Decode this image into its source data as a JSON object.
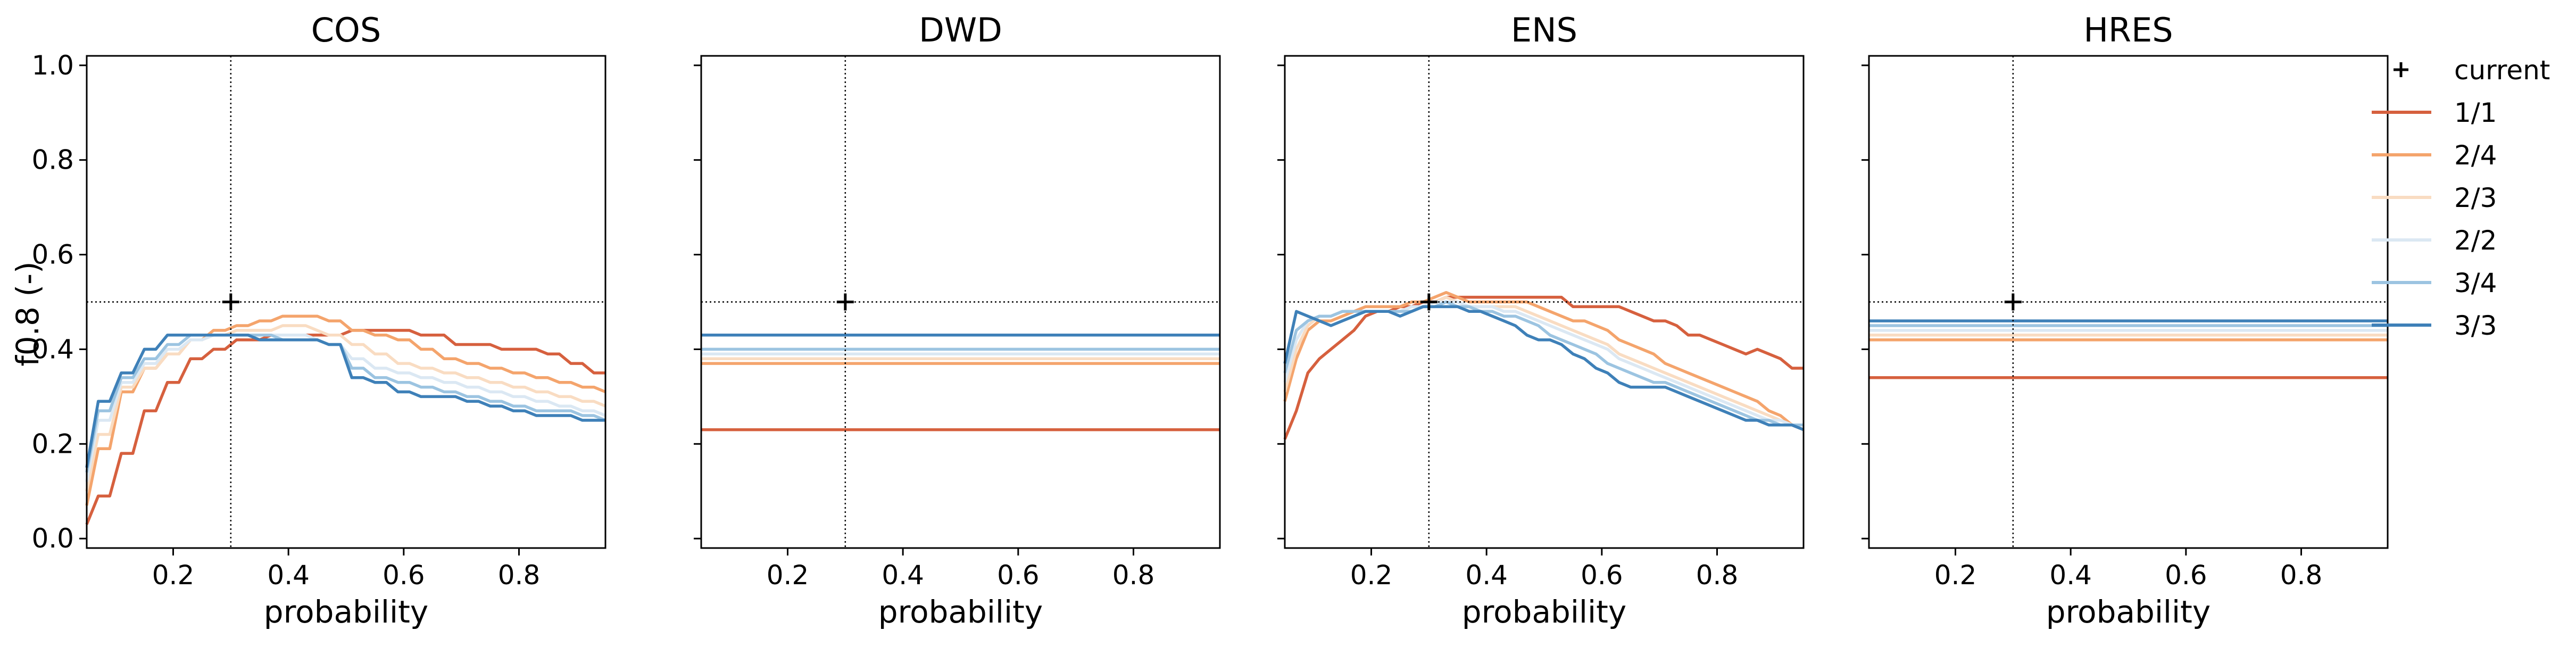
{
  "figure": {
    "ylabel": "f0.8 (-)",
    "xlabel": "probability",
    "legend_position": "right, outside plot area"
  },
  "legend": {
    "items": [
      {
        "label": "current",
        "marker": "plus",
        "color": "#000000"
      },
      {
        "label": "1/1",
        "color": "#d6603e"
      },
      {
        "label": "2/4",
        "color": "#f4a46c"
      },
      {
        "label": "2/3",
        "color": "#f9dcc2"
      },
      {
        "label": "2/2",
        "color": "#dbe8f3"
      },
      {
        "label": "3/4",
        "color": "#9cc4e1"
      },
      {
        "label": "3/3",
        "color": "#3e80b8"
      }
    ]
  },
  "chart_data": [
    {
      "type": "line",
      "title": "COS",
      "xlabel": "probability",
      "ylabel": "f0.8 (-)",
      "xlim": [
        0.05,
        0.95
      ],
      "ylim": [
        -0.02,
        1.02
      ],
      "xticks": [
        "0.2",
        "0.4",
        "0.6",
        "0.8"
      ],
      "yticks": [
        "0.0",
        "0.2",
        "0.4",
        "0.6",
        "0.8",
        "1.0"
      ],
      "current": {
        "x": 0.3,
        "y": 0.5
      },
      "x": [
        0.05,
        0.07,
        0.09,
        0.11,
        0.13,
        0.15,
        0.17,
        0.19,
        0.21,
        0.23,
        0.25,
        0.27,
        0.29,
        0.31,
        0.33,
        0.35,
        0.37,
        0.39,
        0.41,
        0.43,
        0.45,
        0.47,
        0.49,
        0.51,
        0.53,
        0.55,
        0.57,
        0.59,
        0.61,
        0.63,
        0.65,
        0.67,
        0.69,
        0.71,
        0.73,
        0.75,
        0.77,
        0.79,
        0.81,
        0.83,
        0.85,
        0.87,
        0.89,
        0.91,
        0.93,
        0.95
      ],
      "series": [
        {
          "name": "1/1",
          "color": "#d6603e",
          "values": [
            0.03,
            0.09,
            0.09,
            0.18,
            0.18,
            0.27,
            0.27,
            0.33,
            0.33,
            0.38,
            0.38,
            0.4,
            0.4,
            0.42,
            0.42,
            0.42,
            0.43,
            0.43,
            0.43,
            0.43,
            0.43,
            0.43,
            0.43,
            0.44,
            0.44,
            0.44,
            0.44,
            0.44,
            0.44,
            0.43,
            0.43,
            0.43,
            0.41,
            0.41,
            0.41,
            0.41,
            0.4,
            0.4,
            0.4,
            0.4,
            0.39,
            0.39,
            0.37,
            0.37,
            0.35,
            0.35
          ]
        },
        {
          "name": "2/4",
          "color": "#f4a46c",
          "values": [
            0.07,
            0.19,
            0.19,
            0.31,
            0.31,
            0.36,
            0.36,
            0.39,
            0.39,
            0.42,
            0.42,
            0.44,
            0.44,
            0.45,
            0.45,
            0.46,
            0.46,
            0.47,
            0.47,
            0.47,
            0.47,
            0.46,
            0.46,
            0.44,
            0.44,
            0.43,
            0.43,
            0.42,
            0.42,
            0.4,
            0.4,
            0.38,
            0.38,
            0.37,
            0.37,
            0.36,
            0.36,
            0.35,
            0.35,
            0.34,
            0.34,
            0.33,
            0.33,
            0.32,
            0.32,
            0.31
          ]
        },
        {
          "name": "2/3",
          "color": "#f9dcc2",
          "values": [
            0.1,
            0.22,
            0.22,
            0.32,
            0.32,
            0.36,
            0.36,
            0.39,
            0.39,
            0.42,
            0.42,
            0.43,
            0.43,
            0.44,
            0.44,
            0.44,
            0.44,
            0.45,
            0.45,
            0.45,
            0.44,
            0.43,
            0.43,
            0.41,
            0.41,
            0.39,
            0.39,
            0.37,
            0.37,
            0.36,
            0.36,
            0.35,
            0.35,
            0.34,
            0.34,
            0.33,
            0.33,
            0.32,
            0.32,
            0.31,
            0.31,
            0.3,
            0.3,
            0.29,
            0.29,
            0.28
          ]
        },
        {
          "name": "2/2",
          "color": "#dbe8f3",
          "values": [
            0.12,
            0.25,
            0.25,
            0.33,
            0.33,
            0.37,
            0.37,
            0.4,
            0.4,
            0.42,
            0.42,
            0.43,
            0.43,
            0.43,
            0.43,
            0.43,
            0.43,
            0.43,
            0.43,
            0.43,
            0.42,
            0.41,
            0.41,
            0.38,
            0.38,
            0.36,
            0.36,
            0.35,
            0.35,
            0.34,
            0.34,
            0.33,
            0.33,
            0.32,
            0.32,
            0.31,
            0.31,
            0.3,
            0.3,
            0.29,
            0.29,
            0.28,
            0.28,
            0.27,
            0.27,
            0.26
          ]
        },
        {
          "name": "3/4",
          "color": "#9cc4e1",
          "values": [
            0.14,
            0.27,
            0.27,
            0.34,
            0.34,
            0.38,
            0.38,
            0.41,
            0.41,
            0.43,
            0.43,
            0.43,
            0.43,
            0.43,
            0.43,
            0.43,
            0.43,
            0.42,
            0.42,
            0.42,
            0.42,
            0.41,
            0.41,
            0.36,
            0.36,
            0.34,
            0.34,
            0.33,
            0.33,
            0.32,
            0.32,
            0.31,
            0.31,
            0.3,
            0.3,
            0.29,
            0.29,
            0.28,
            0.28,
            0.27,
            0.27,
            0.27,
            0.27,
            0.26,
            0.26,
            0.25
          ]
        },
        {
          "name": "3/3",
          "color": "#3e80b8",
          "values": [
            0.15,
            0.29,
            0.29,
            0.35,
            0.35,
            0.4,
            0.4,
            0.43,
            0.43,
            0.43,
            0.43,
            0.43,
            0.43,
            0.43,
            0.43,
            0.42,
            0.42,
            0.42,
            0.42,
            0.42,
            0.42,
            0.41,
            0.41,
            0.34,
            0.34,
            0.33,
            0.33,
            0.31,
            0.31,
            0.3,
            0.3,
            0.3,
            0.3,
            0.29,
            0.29,
            0.28,
            0.28,
            0.27,
            0.27,
            0.26,
            0.26,
            0.26,
            0.26,
            0.25,
            0.25,
            0.25
          ]
        }
      ]
    },
    {
      "type": "line",
      "title": "DWD",
      "xlabel": "probability",
      "xlim": [
        0.05,
        0.95
      ],
      "ylim": [
        -0.02,
        1.02
      ],
      "xticks": [
        "0.2",
        "0.4",
        "0.6",
        "0.8"
      ],
      "current": {
        "x": 0.3,
        "y": 0.5
      },
      "x": [
        0.05,
        0.95
      ],
      "series": [
        {
          "name": "1/1",
          "color": "#d6603e",
          "values": [
            0.23,
            0.23
          ]
        },
        {
          "name": "2/4",
          "color": "#f4a46c",
          "values": [
            0.37,
            0.37
          ]
        },
        {
          "name": "2/3",
          "color": "#f9dcc2",
          "values": [
            0.38,
            0.38
          ]
        },
        {
          "name": "2/2",
          "color": "#dbe8f3",
          "values": [
            0.39,
            0.39
          ]
        },
        {
          "name": "3/4",
          "color": "#9cc4e1",
          "values": [
            0.4,
            0.4
          ]
        },
        {
          "name": "3/3",
          "color": "#3e80b8",
          "values": [
            0.43,
            0.43
          ]
        }
      ]
    },
    {
      "type": "line",
      "title": "ENS",
      "xlabel": "probability",
      "xlim": [
        0.05,
        0.95
      ],
      "ylim": [
        -0.02,
        1.02
      ],
      "xticks": [
        "0.2",
        "0.4",
        "0.6",
        "0.8"
      ],
      "current": {
        "x": 0.3,
        "y": 0.5
      },
      "x": [
        0.05,
        0.07,
        0.09,
        0.11,
        0.13,
        0.15,
        0.17,
        0.19,
        0.21,
        0.23,
        0.25,
        0.27,
        0.29,
        0.31,
        0.33,
        0.35,
        0.37,
        0.39,
        0.41,
        0.43,
        0.45,
        0.47,
        0.49,
        0.51,
        0.53,
        0.55,
        0.57,
        0.59,
        0.61,
        0.63,
        0.65,
        0.67,
        0.69,
        0.71,
        0.73,
        0.75,
        0.77,
        0.79,
        0.81,
        0.83,
        0.85,
        0.87,
        0.89,
        0.91,
        0.93,
        0.95
      ],
      "series": [
        {
          "name": "1/1",
          "color": "#d6603e",
          "values": [
            0.21,
            0.27,
            0.35,
            0.38,
            0.4,
            0.42,
            0.44,
            0.47,
            0.48,
            0.48,
            0.49,
            0.49,
            0.5,
            0.5,
            0.51,
            0.51,
            0.51,
            0.51,
            0.51,
            0.51,
            0.51,
            0.51,
            0.51,
            0.51,
            0.51,
            0.49,
            0.49,
            0.49,
            0.49,
            0.49,
            0.48,
            0.47,
            0.46,
            0.46,
            0.45,
            0.43,
            0.43,
            0.42,
            0.41,
            0.4,
            0.39,
            0.4,
            0.39,
            0.38,
            0.36,
            0.36
          ]
        },
        {
          "name": "2/4",
          "color": "#f4a46c",
          "values": [
            0.29,
            0.38,
            0.44,
            0.46,
            0.46,
            0.47,
            0.48,
            0.49,
            0.49,
            0.49,
            0.49,
            0.5,
            0.5,
            0.51,
            0.52,
            0.51,
            0.5,
            0.5,
            0.5,
            0.5,
            0.5,
            0.5,
            0.49,
            0.48,
            0.47,
            0.46,
            0.46,
            0.45,
            0.44,
            0.42,
            0.41,
            0.4,
            0.39,
            0.37,
            0.36,
            0.35,
            0.34,
            0.33,
            0.32,
            0.31,
            0.3,
            0.29,
            0.27,
            0.26,
            0.24,
            0.23
          ]
        },
        {
          "name": "2/3",
          "color": "#f9dcc2",
          "values": [
            0.31,
            0.4,
            0.45,
            0.47,
            0.47,
            0.48,
            0.48,
            0.48,
            0.48,
            0.48,
            0.48,
            0.49,
            0.49,
            0.5,
            0.51,
            0.5,
            0.49,
            0.49,
            0.49,
            0.49,
            0.49,
            0.48,
            0.47,
            0.46,
            0.45,
            0.44,
            0.43,
            0.42,
            0.41,
            0.39,
            0.38,
            0.37,
            0.36,
            0.35,
            0.34,
            0.33,
            0.32,
            0.31,
            0.3,
            0.29,
            0.28,
            0.27,
            0.26,
            0.25,
            0.24,
            0.24
          ]
        },
        {
          "name": "2/2",
          "color": "#dbe8f3",
          "values": [
            0.33,
            0.42,
            0.46,
            0.47,
            0.47,
            0.48,
            0.48,
            0.48,
            0.48,
            0.48,
            0.48,
            0.49,
            0.49,
            0.5,
            0.5,
            0.5,
            0.49,
            0.49,
            0.49,
            0.48,
            0.48,
            0.47,
            0.46,
            0.45,
            0.44,
            0.43,
            0.42,
            0.41,
            0.4,
            0.38,
            0.37,
            0.36,
            0.35,
            0.34,
            0.33,
            0.32,
            0.31,
            0.3,
            0.29,
            0.28,
            0.27,
            0.26,
            0.25,
            0.25,
            0.24,
            0.24
          ]
        },
        {
          "name": "3/4",
          "color": "#9cc4e1",
          "values": [
            0.35,
            0.44,
            0.46,
            0.47,
            0.47,
            0.48,
            0.48,
            0.48,
            0.48,
            0.48,
            0.48,
            0.48,
            0.49,
            0.49,
            0.5,
            0.49,
            0.49,
            0.48,
            0.48,
            0.47,
            0.47,
            0.46,
            0.45,
            0.43,
            0.42,
            0.41,
            0.4,
            0.39,
            0.37,
            0.36,
            0.35,
            0.34,
            0.33,
            0.33,
            0.32,
            0.31,
            0.3,
            0.29,
            0.28,
            0.27,
            0.26,
            0.25,
            0.25,
            0.24,
            0.24,
            0.24
          ]
        },
        {
          "name": "3/3",
          "color": "#3e80b8",
          "values": [
            0.37,
            0.48,
            0.47,
            0.46,
            0.45,
            0.46,
            0.47,
            0.48,
            0.48,
            0.48,
            0.47,
            0.48,
            0.49,
            0.49,
            0.49,
            0.49,
            0.48,
            0.48,
            0.47,
            0.46,
            0.45,
            0.43,
            0.42,
            0.42,
            0.41,
            0.39,
            0.38,
            0.36,
            0.35,
            0.33,
            0.32,
            0.32,
            0.32,
            0.32,
            0.31,
            0.3,
            0.29,
            0.28,
            0.27,
            0.26,
            0.25,
            0.25,
            0.24,
            0.24,
            0.24,
            0.23
          ]
        }
      ]
    },
    {
      "type": "line",
      "title": "HRES",
      "xlabel": "probability",
      "xlim": [
        0.05,
        0.95
      ],
      "ylim": [
        -0.02,
        1.02
      ],
      "xticks": [
        "0.2",
        "0.4",
        "0.6",
        "0.8"
      ],
      "current": {
        "x": 0.3,
        "y": 0.5
      },
      "x": [
        0.05,
        0.95
      ],
      "series": [
        {
          "name": "1/1",
          "color": "#d6603e",
          "values": [
            0.34,
            0.34
          ]
        },
        {
          "name": "2/4",
          "color": "#f4a46c",
          "values": [
            0.42,
            0.42
          ]
        },
        {
          "name": "2/3",
          "color": "#f9dcc2",
          "values": [
            0.43,
            0.43
          ]
        },
        {
          "name": "2/2",
          "color": "#dbe8f3",
          "values": [
            0.44,
            0.44
          ]
        },
        {
          "name": "3/4",
          "color": "#9cc4e1",
          "values": [
            0.45,
            0.45
          ]
        },
        {
          "name": "3/3",
          "color": "#3e80b8",
          "values": [
            0.46,
            0.46
          ]
        }
      ]
    }
  ]
}
